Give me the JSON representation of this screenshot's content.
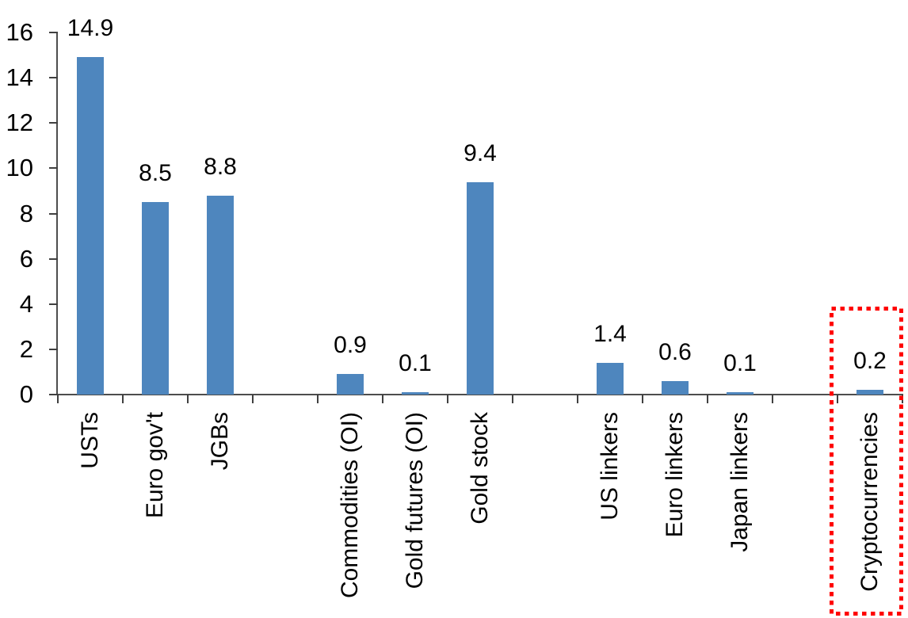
{
  "chart_data": {
    "type": "bar",
    "title": "",
    "xlabel": "",
    "ylabel": "",
    "grid": false,
    "legend": "none",
    "categories": [
      "USTs",
      "Euro gov't",
      "JGBs",
      "Commodities (OI)",
      "Gold futures (OI)",
      "Gold stock",
      "US linkers",
      "Euro linkers",
      "Japan linkers",
      "Cryptocurrencies"
    ],
    "values": [
      14.9,
      8.5,
      8.8,
      0.9,
      0.1,
      9.4,
      1.4,
      0.6,
      0.1,
      0.2
    ],
    "display_values": [
      "14.9",
      "8.5",
      "8.8",
      "0.9",
      "0.1",
      "9.4",
      "1.4",
      "0.6",
      "0.1",
      "0.2"
    ],
    "slots": [
      0,
      1,
      2,
      4,
      5,
      6,
      8,
      9,
      10,
      12
    ],
    "total_slots": 13,
    "ylim": [
      0,
      16
    ],
    "y_ticks": [
      0,
      2,
      4,
      6,
      8,
      10,
      12,
      14,
      16
    ],
    "y_tick_labels": [
      "0",
      "2",
      "4",
      "6",
      "8",
      "10",
      "12",
      "14",
      "16"
    ],
    "bar_color": "#4E86BE",
    "axis_color": "#4d4d4d",
    "label_color": "#000000",
    "highlight": {
      "category": "Cryptocurrencies",
      "color": "#FF0000",
      "style": "dotted-box"
    }
  }
}
